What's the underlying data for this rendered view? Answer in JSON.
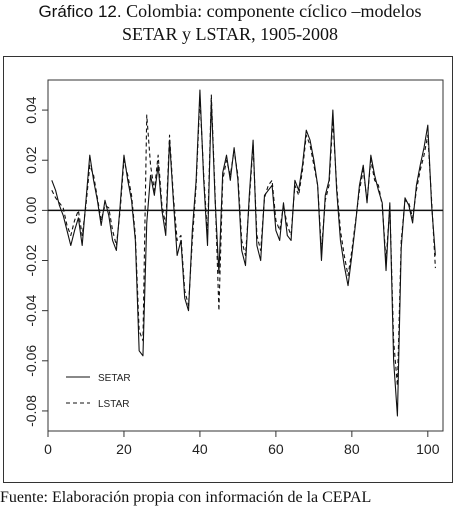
{
  "figure": {
    "label": "Gráfico 12.",
    "title_line1": "Colombia: componente cíclico –modelos",
    "title_line2": "SETAR y LSTAR, 1905-2008",
    "source": "Fuente: Elaboración propia con información de la CEPAL"
  },
  "chart_data": {
    "type": "line",
    "xlim": [
      0,
      104
    ],
    "ylim": [
      -0.088,
      0.052
    ],
    "x_ticks": [
      0,
      20,
      40,
      60,
      80,
      100
    ],
    "x_tick_labels": [
      "0",
      "20",
      "40",
      "60",
      "80",
      "100"
    ],
    "y_ticks": [
      -0.08,
      -0.06,
      -0.04,
      -0.02,
      0.0,
      0.02,
      0.04
    ],
    "y_tick_labels": [
      "-0.08",
      "-0.06",
      "-0.04",
      "-0.02",
      "0.00",
      "0.02",
      "0.04"
    ],
    "hline": 0,
    "grid": false,
    "legend_position": "bottom-left",
    "x": [
      1,
      2,
      3,
      4,
      5,
      6,
      7,
      8,
      9,
      10,
      11,
      12,
      13,
      14,
      15,
      16,
      17,
      18,
      19,
      20,
      21,
      22,
      23,
      24,
      25,
      26,
      27,
      28,
      29,
      30,
      31,
      32,
      33,
      34,
      35,
      36,
      37,
      38,
      39,
      40,
      41,
      42,
      43,
      44,
      45,
      46,
      47,
      48,
      49,
      50,
      51,
      52,
      53,
      54,
      55,
      56,
      57,
      58,
      59,
      60,
      61,
      62,
      63,
      64,
      65,
      66,
      67,
      68,
      69,
      70,
      71,
      72,
      73,
      74,
      75,
      76,
      77,
      78,
      79,
      80,
      81,
      82,
      83,
      84,
      85,
      86,
      87,
      88,
      89,
      90,
      91,
      92,
      93,
      94,
      95,
      96,
      97,
      98,
      99,
      100,
      101,
      102
    ],
    "series": [
      {
        "name": "SETAR",
        "line_style": "solid",
        "color": "#111111",
        "values": [
          0.012,
          0.008,
          0.002,
          -0.002,
          -0.008,
          -0.014,
          -0.008,
          -0.003,
          -0.014,
          0.004,
          0.022,
          0.012,
          0.004,
          -0.006,
          0.004,
          -0.002,
          -0.012,
          -0.016,
          0.002,
          0.022,
          0.012,
          0.004,
          -0.012,
          -0.056,
          -0.058,
          -0.005,
          0.014,
          0.006,
          0.018,
          0.0,
          -0.01,
          0.028,
          0.004,
          -0.018,
          -0.012,
          -0.035,
          -0.04,
          -0.008,
          0.012,
          0.048,
          0.012,
          -0.014,
          0.044,
          0.004,
          -0.025,
          0.015,
          0.022,
          0.012,
          0.025,
          0.012,
          -0.016,
          -0.022,
          0.006,
          0.028,
          -0.014,
          -0.02,
          0.006,
          0.008,
          0.01,
          -0.008,
          -0.012,
          0.003,
          -0.01,
          -0.012,
          0.012,
          0.008,
          0.018,
          0.032,
          0.028,
          0.02,
          0.01,
          -0.02,
          0.006,
          0.012,
          0.04,
          0.008,
          -0.012,
          -0.022,
          -0.03,
          -0.018,
          -0.005,
          0.01,
          0.018,
          0.003,
          0.022,
          0.014,
          0.008,
          0.003,
          -0.024,
          0.003,
          -0.06,
          -0.082,
          -0.015,
          0.005,
          0.002,
          -0.005,
          0.01,
          0.018,
          0.025,
          0.034,
          0.002,
          -0.018
        ]
      },
      {
        "name": "LSTAR",
        "line_style": "dashed",
        "color": "#111111",
        "values": [
          0.008,
          0.005,
          0.003,
          0.001,
          -0.006,
          -0.01,
          -0.004,
          0.0,
          -0.01,
          0.002,
          0.018,
          0.014,
          0.005,
          -0.004,
          0.002,
          0.001,
          -0.008,
          -0.014,
          0.0,
          0.02,
          0.014,
          0.006,
          -0.01,
          -0.048,
          -0.052,
          0.038,
          0.018,
          0.008,
          0.022,
          0.002,
          -0.006,
          0.03,
          0.006,
          -0.012,
          -0.01,
          -0.032,
          -0.038,
          -0.012,
          0.01,
          0.045,
          0.014,
          -0.01,
          0.046,
          0.006,
          -0.04,
          0.012,
          0.02,
          0.014,
          0.024,
          0.014,
          -0.012,
          -0.018,
          0.004,
          0.026,
          -0.01,
          -0.016,
          0.005,
          0.01,
          0.012,
          -0.004,
          -0.008,
          0.002,
          -0.006,
          -0.01,
          0.01,
          0.006,
          0.016,
          0.03,
          0.026,
          0.018,
          0.01,
          -0.016,
          0.004,
          0.01,
          0.036,
          0.01,
          -0.008,
          -0.018,
          -0.026,
          -0.016,
          -0.004,
          0.008,
          0.016,
          0.004,
          0.02,
          0.012,
          0.01,
          0.002,
          -0.02,
          0.002,
          -0.052,
          -0.07,
          -0.012,
          0.004,
          0.003,
          -0.003,
          0.008,
          0.016,
          0.022,
          0.03,
          0.004,
          -0.023
        ]
      }
    ]
  }
}
